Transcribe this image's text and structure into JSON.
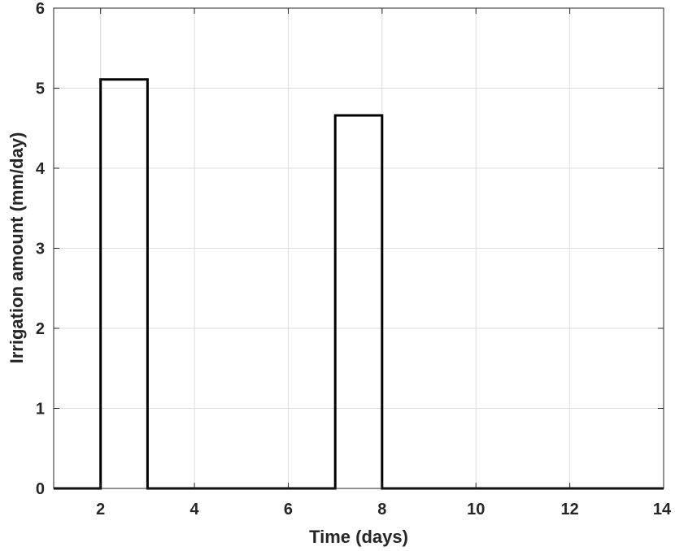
{
  "chart_data": {
    "type": "line",
    "step": true,
    "title": "",
    "xlabel": "Time (days)",
    "ylabel": "Irrigation amount (mm/day)",
    "xlim": [
      1,
      14
    ],
    "ylim": [
      0,
      6
    ],
    "xticks": [
      2,
      4,
      6,
      8,
      10,
      12,
      14
    ],
    "yticks": [
      0,
      1,
      2,
      3,
      4,
      5,
      6
    ],
    "grid": true,
    "series": [
      {
        "color": "#000000",
        "x": [
          1,
          2,
          2,
          3,
          3,
          7,
          7,
          8,
          8,
          14
        ],
        "y": [
          0,
          0,
          5.11,
          5.11,
          0,
          0,
          4.66,
          4.66,
          0,
          0
        ]
      }
    ]
  }
}
